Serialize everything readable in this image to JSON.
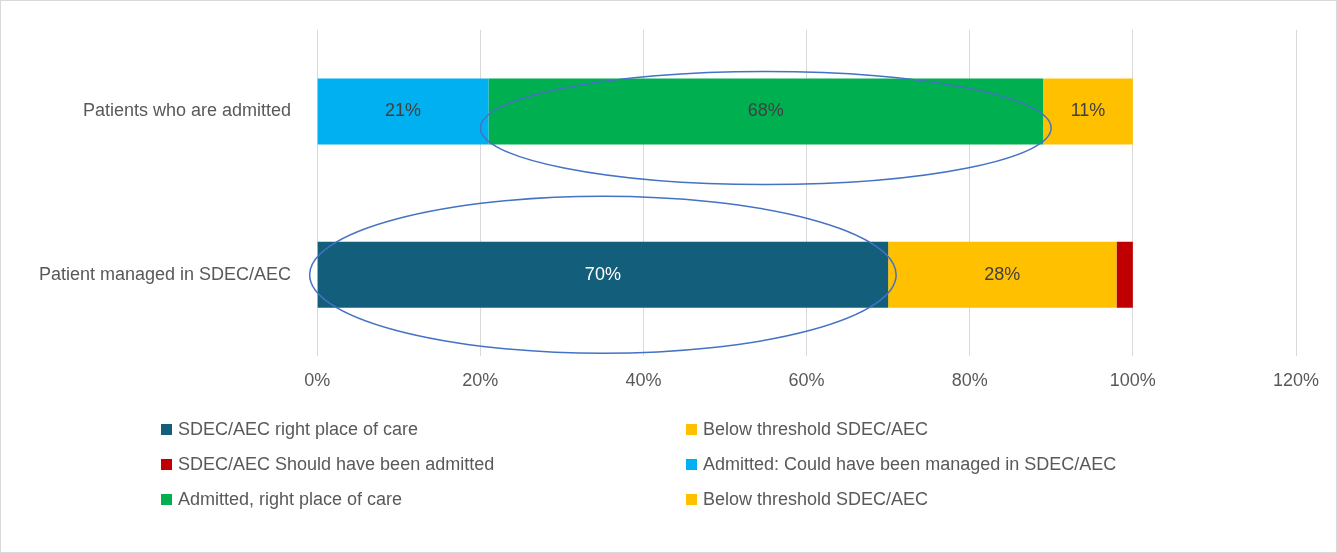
{
  "chart_data": {
    "type": "bar",
    "orientation": "horizontal",
    "stacked": true,
    "categories": [
      "Patients who are admitted",
      "Patient managed in SDEC/AEC"
    ],
    "series": [
      {
        "name": "SDEC/AEC right place of care",
        "color": "#135e7a",
        "values": [
          null,
          70
        ],
        "value_labels": [
          null,
          "70%"
        ]
      },
      {
        "name": "Below threshold SDEC/AEC",
        "color": "#ffc000",
        "values": [
          null,
          28
        ],
        "value_labels": [
          null,
          "28%"
        ]
      },
      {
        "name": "SDEC/AEC Should have been admitted",
        "color": "#c00000",
        "values": [
          null,
          2
        ],
        "value_labels": [
          null,
          null
        ]
      },
      {
        "name": "Admitted: Could have been managed in SDEC/AEC",
        "color": "#00b0f0",
        "values": [
          21,
          null
        ],
        "value_labels": [
          "21%",
          null
        ]
      },
      {
        "name": "Admitted, right place of care",
        "color": "#00b050",
        "values": [
          68,
          null
        ],
        "value_labels": [
          "68%",
          null
        ]
      },
      {
        "name": "Below threshold SDEC/AEC",
        "color": "#ffc000",
        "values": [
          11,
          null
        ],
        "value_labels": [
          "11%",
          null
        ]
      }
    ],
    "xlim": [
      0,
      120
    ],
    "xticks": [
      {
        "value": 0,
        "label": "0%"
      },
      {
        "value": 20,
        "label": "20%"
      },
      {
        "value": 40,
        "label": "40%"
      },
      {
        "value": 60,
        "label": "60%"
      },
      {
        "value": 80,
        "label": "80%"
      },
      {
        "value": 100,
        "label": "100%"
      },
      {
        "value": 120,
        "label": "120%"
      }
    ],
    "grid": "x",
    "legend": "bottom"
  }
}
